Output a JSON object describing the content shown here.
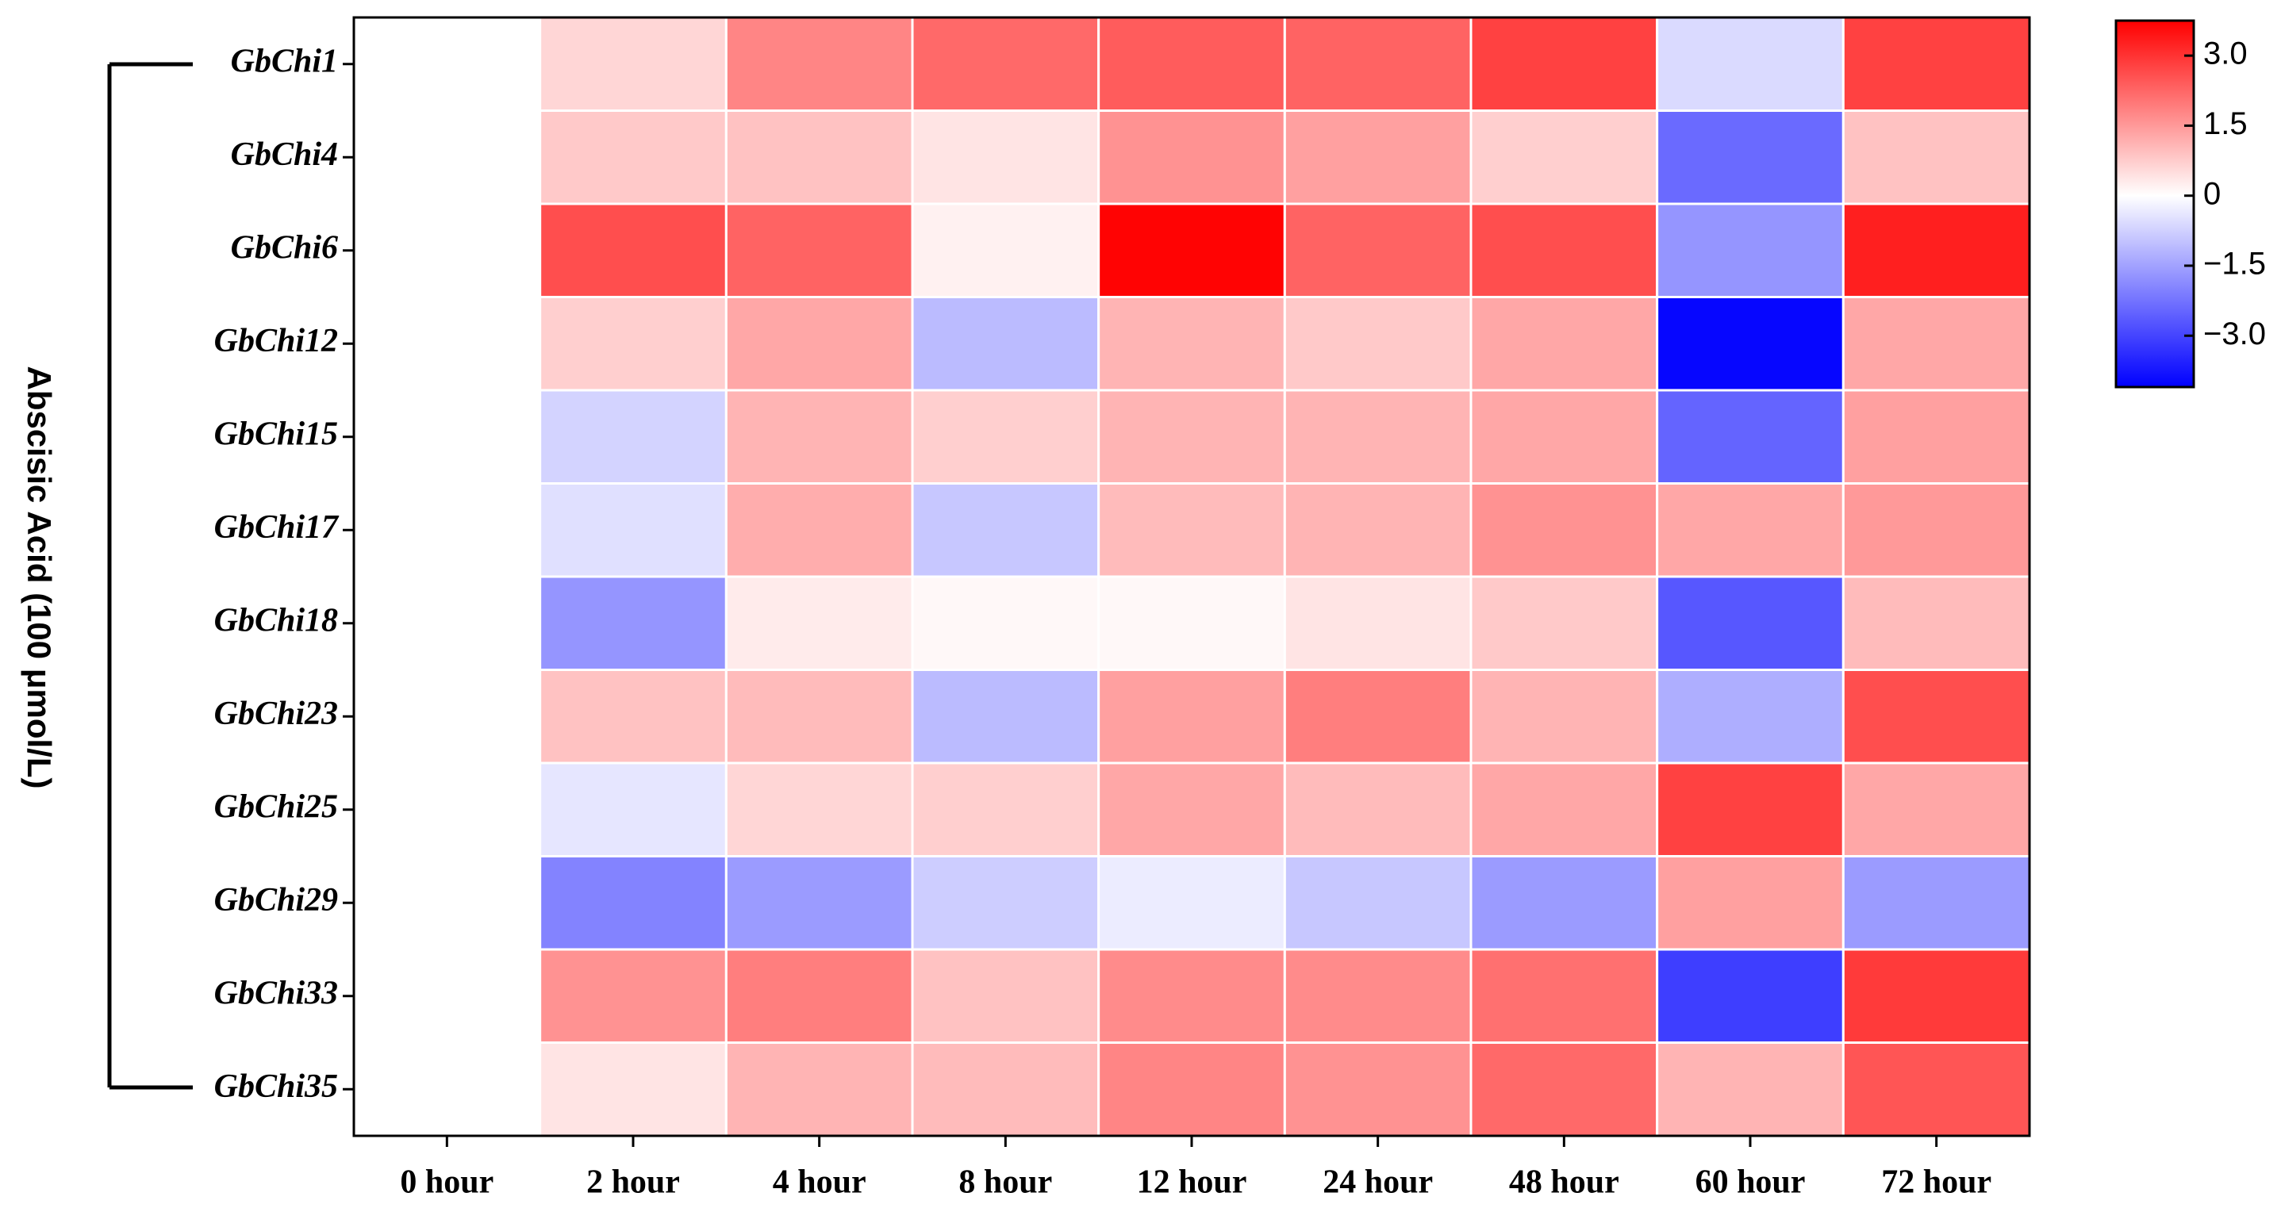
{
  "chart_data": {
    "type": "heatmap",
    "y_label": "Abscisic Acid (100 μmol/L)",
    "categories": [
      "0 hour",
      "2 hour",
      "4 hour",
      "8 hour",
      "12 hour",
      "24 hour",
      "48 hour",
      "60 hour",
      "72 hour"
    ],
    "rows": [
      "GbChi1",
      "GbChi4",
      "GbChi6",
      "GbChi12",
      "GbChi15",
      "GbChi17",
      "GbChi18",
      "GbChi23",
      "GbChi25",
      "GbChi29",
      "GbChi33",
      "GbChi35"
    ],
    "values": [
      [
        0,
        0.6,
        1.8,
        2.2,
        2.4,
        2.3,
        2.8,
        -0.6,
        2.8
      ],
      [
        0,
        0.8,
        0.9,
        0.4,
        1.6,
        1.4,
        0.7,
        -2.4,
        0.9
      ],
      [
        0,
        2.6,
        2.3,
        0.2,
        3.7,
        2.3,
        2.6,
        -1.7,
        3.3
      ],
      [
        0,
        0.7,
        1.3,
        -1.1,
        1.1,
        0.8,
        1.3,
        -4.0,
        1.3
      ],
      [
        0,
        -0.7,
        1.1,
        0.7,
        1.1,
        1.1,
        1.3,
        -2.5,
        1.4
      ],
      [
        0,
        -0.5,
        1.2,
        -0.9,
        1.0,
        1.1,
        1.6,
        1.3,
        1.5
      ],
      [
        0,
        -1.7,
        0.3,
        0.1,
        0.1,
        0.4,
        0.8,
        -2.7,
        1.0
      ],
      [
        0,
        0.9,
        1.0,
        -1.1,
        1.4,
        1.9,
        1.1,
        -1.3,
        2.6
      ],
      [
        0,
        -0.4,
        0.6,
        0.7,
        1.3,
        1.0,
        1.3,
        2.8,
        1.3
      ],
      [
        0,
        -2.0,
        -1.6,
        -0.8,
        -0.3,
        -0.9,
        -1.6,
        1.4,
        -1.6
      ],
      [
        0,
        1.6,
        1.9,
        0.9,
        1.7,
        1.7,
        2.1,
        -3.1,
        2.9
      ],
      [
        0,
        0.4,
        1.1,
        1.0,
        1.8,
        1.6,
        2.2,
        1.1,
        2.5
      ]
    ],
    "colors": [
      "#0000ff",
      "#ffffff",
      "#ff0000"
    ],
    "zlim": [
      -4.1,
      3.75
    ],
    "zticks": [
      {
        "value": 3,
        "label": "3.0"
      },
      1.5,
      0,
      {
        "value": -1.5,
        "label": "−1.5"
      },
      {
        "value": -3,
        "label": "−3.0"
      }
    ]
  }
}
